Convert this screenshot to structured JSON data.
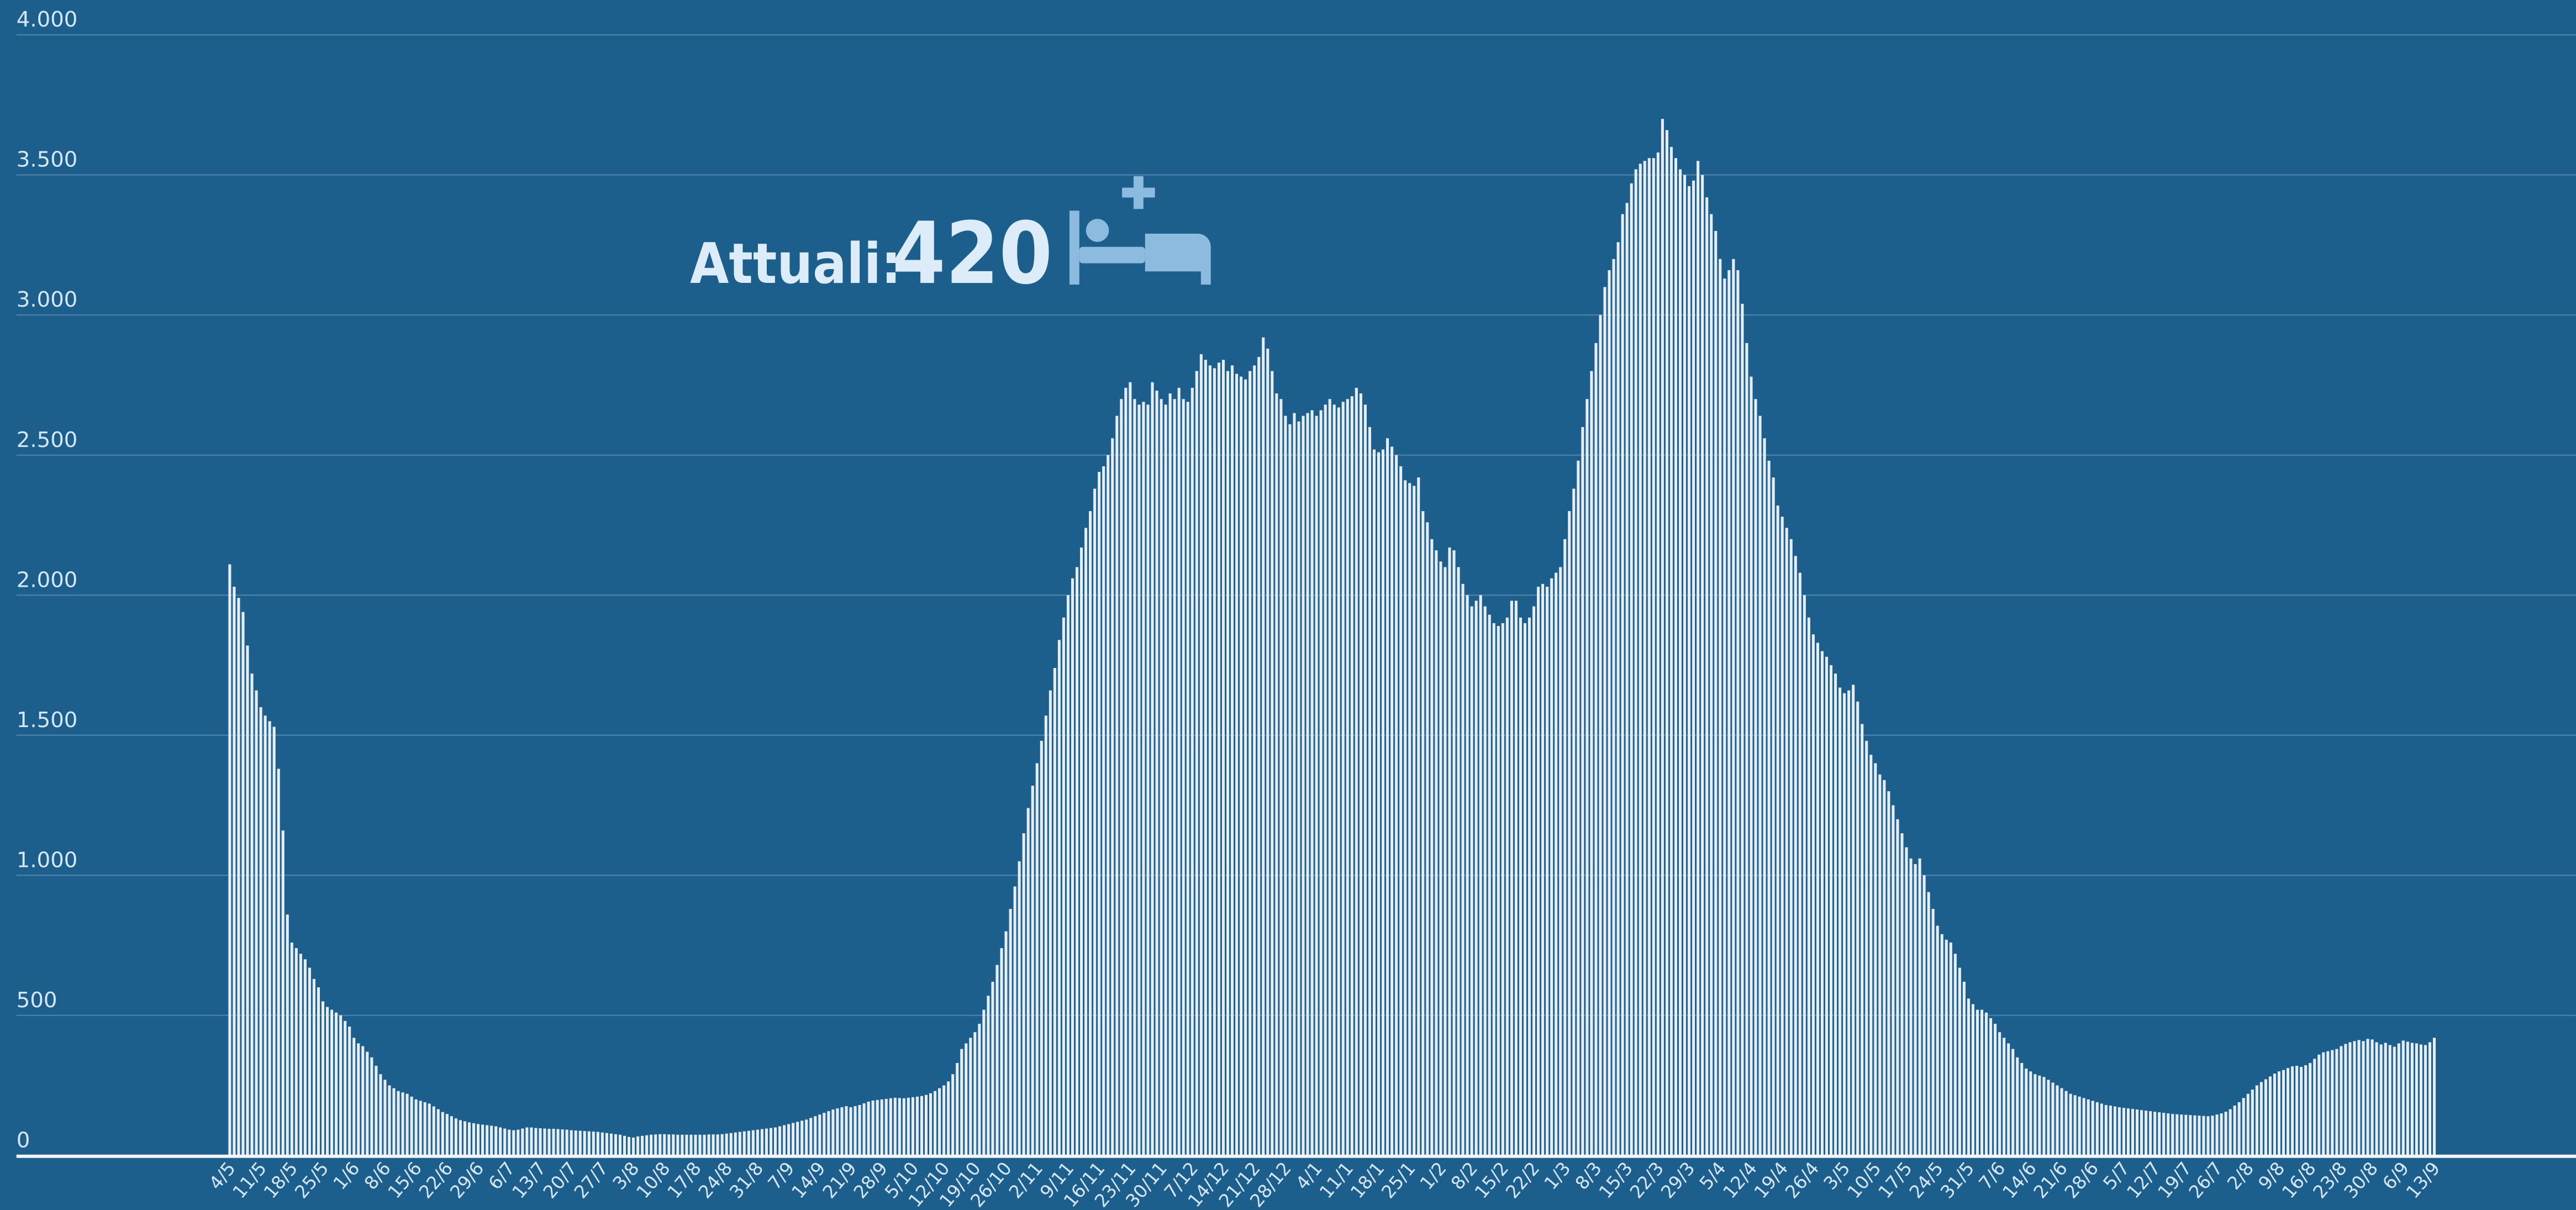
{
  "chart_data": {
    "type": "bar",
    "annotation": {
      "label": "Attuali:",
      "value": "420"
    },
    "color": "#e6eef4",
    "grid": true,
    "ylim": [
      0,
      4000
    ],
    "yticks": [
      0,
      500,
      {
        "value": 1000,
        "label": "1.000"
      },
      {
        "value": 1500,
        "label": "1.500"
      },
      {
        "value": 2000,
        "label": "2.000"
      },
      {
        "value": 2500,
        "label": "2.500"
      },
      {
        "value": 3000,
        "label": "3.000"
      },
      {
        "value": 3500,
        "label": "3.500"
      },
      {
        "value": 4000,
        "label": "4.000"
      }
    ],
    "categories": [
      "4/5",
      null,
      null,
      null,
      null,
      null,
      null,
      "11/5",
      null,
      null,
      null,
      null,
      null,
      null,
      "18/5",
      null,
      null,
      null,
      null,
      null,
      null,
      "25/5",
      null,
      null,
      null,
      null,
      null,
      null,
      "1/6",
      null,
      null,
      null,
      null,
      null,
      null,
      "8/6",
      null,
      null,
      null,
      null,
      null,
      null,
      "15/6",
      null,
      null,
      null,
      null,
      null,
      null,
      "22/6",
      null,
      null,
      null,
      null,
      null,
      null,
      "29/6",
      null,
      null,
      null,
      null,
      null,
      null,
      "6/7",
      null,
      null,
      null,
      null,
      null,
      null,
      "13/7",
      null,
      null,
      null,
      null,
      null,
      null,
      "20/7",
      null,
      null,
      null,
      null,
      null,
      null,
      "27/7",
      null,
      null,
      null,
      null,
      null,
      null,
      "3/8",
      null,
      null,
      null,
      null,
      null,
      null,
      "10/8",
      null,
      null,
      null,
      null,
      null,
      null,
      "17/8",
      null,
      null,
      null,
      null,
      null,
      null,
      "24/8",
      null,
      null,
      null,
      null,
      null,
      null,
      "31/8",
      null,
      null,
      null,
      null,
      null,
      null,
      "7/9",
      null,
      null,
      null,
      null,
      null,
      null,
      "14/9",
      null,
      null,
      null,
      null,
      null,
      null,
      "21/9",
      null,
      null,
      null,
      null,
      null,
      null,
      "28/9",
      null,
      null,
      null,
      null,
      null,
      null,
      "5/10",
      null,
      null,
      null,
      null,
      null,
      null,
      "12/10",
      null,
      null,
      null,
      null,
      null,
      null,
      "19/10",
      null,
      null,
      null,
      null,
      null,
      null,
      "26/10",
      null,
      null,
      null,
      null,
      null,
      null,
      "2/11",
      null,
      null,
      null,
      null,
      null,
      null,
      "9/11",
      null,
      null,
      null,
      null,
      null,
      null,
      "16/11",
      null,
      null,
      null,
      null,
      null,
      null,
      "23/11",
      null,
      null,
      null,
      null,
      null,
      null,
      "30/11",
      null,
      null,
      null,
      null,
      null,
      null,
      "7/12",
      null,
      null,
      null,
      null,
      null,
      null,
      "14/12",
      null,
      null,
      null,
      null,
      null,
      null,
      "21/12",
      null,
      null,
      null,
      null,
      null,
      null,
      "28/12",
      null,
      null,
      null,
      null,
      null,
      null,
      "4/1",
      null,
      null,
      null,
      null,
      null,
      null,
      "11/1",
      null,
      null,
      null,
      null,
      null,
      null,
      "18/1",
      null,
      null,
      null,
      null,
      null,
      null,
      "25/1",
      null,
      null,
      null,
      null,
      null,
      null,
      "1/2",
      null,
      null,
      null,
      null,
      null,
      null,
      "8/2",
      null,
      null,
      null,
      null,
      null,
      null,
      "15/2",
      null,
      null,
      null,
      null,
      null,
      null,
      "22/2",
      null,
      null,
      null,
      null,
      null,
      null,
      "1/3",
      null,
      null,
      null,
      null,
      null,
      null,
      "8/3",
      null,
      null,
      null,
      null,
      null,
      null,
      "15/3",
      null,
      null,
      null,
      null,
      null,
      null,
      "22/3",
      null,
      null,
      null,
      null,
      null,
      null,
      "29/3",
      null,
      null,
      null,
      null,
      null,
      null,
      "5/4",
      null,
      null,
      null,
      null,
      null,
      null,
      "12/4",
      null,
      null,
      null,
      null,
      null,
      null,
      "19/4",
      null,
      null,
      null,
      null,
      null,
      null,
      "26/4",
      null,
      null,
      null,
      null,
      null,
      null,
      "3/5",
      null,
      null,
      null,
      null,
      null,
      null,
      "10/5",
      null,
      null,
      null,
      null,
      null,
      null,
      "17/5",
      null,
      null,
      null,
      null,
      null,
      null,
      "24/5",
      null,
      null,
      null,
      null,
      null,
      null,
      "31/5",
      null,
      null,
      null,
      null,
      null,
      null,
      "7/6",
      null,
      null,
      null,
      null,
      null,
      null,
      "14/6",
      null,
      null,
      null,
      null,
      null,
      null,
      "21/6",
      null,
      null,
      null,
      null,
      null,
      null,
      "28/6",
      null,
      null,
      null,
      null,
      null,
      null,
      "5/7",
      null,
      null,
      null,
      null,
      null,
      null,
      "12/7",
      null,
      null,
      null,
      null,
      null,
      null,
      "19/7",
      null,
      null,
      null,
      null,
      null,
      null,
      "26/7",
      null,
      null,
      null,
      null,
      null,
      null,
      "2/8",
      null,
      null,
      null,
      null,
      null,
      null,
      "9/8",
      null,
      null,
      null,
      null,
      null,
      null,
      "16/8",
      null,
      null,
      null,
      null,
      null,
      null,
      "23/8",
      null,
      null,
      null,
      null,
      null,
      null,
      "30/8",
      null,
      null,
      null,
      null,
      null,
      null,
      "6/9",
      null,
      null,
      null,
      null,
      null,
      null,
      "13/9"
    ],
    "values": [
      2110,
      2030,
      1990,
      1940,
      1820,
      1720,
      1660,
      1600,
      1570,
      1550,
      1530,
      1380,
      1160,
      860,
      760,
      740,
      720,
      700,
      670,
      630,
      600,
      550,
      530,
      520,
      510,
      500,
      480,
      460,
      420,
      400,
      390,
      370,
      350,
      320,
      290,
      270,
      250,
      240,
      230,
      225,
      220,
      210,
      200,
      195,
      190,
      185,
      175,
      165,
      155,
      148,
      140,
      132,
      126,
      122,
      118,
      115,
      112,
      110,
      108,
      106,
      104,
      100,
      96,
      92,
      90,
      92,
      96,
      100,
      100,
      98,
      97,
      96,
      95,
      95,
      94,
      93,
      92,
      90,
      89,
      88,
      87,
      86,
      85,
      84,
      82,
      80,
      78,
      76,
      74,
      70,
      66,
      64,
      68,
      70,
      72,
      74,
      75,
      76,
      76,
      75,
      75,
      74,
      74,
      74,
      74,
      74,
      74,
      74,
      75,
      75,
      75,
      76,
      78,
      80,
      82,
      84,
      86,
      88,
      90,
      92,
      94,
      96,
      98,
      100,
      104,
      108,
      112,
      116,
      120,
      124,
      128,
      134,
      140,
      146,
      152,
      158,
      164,
      168,
      172,
      176,
      172,
      176,
      180,
      186,
      192,
      196,
      198,
      200,
      202,
      204,
      206,
      205,
      204,
      206,
      208,
      210,
      212,
      216,
      222,
      230,
      240,
      250,
      264,
      290,
      330,
      380,
      400,
      420,
      440,
      470,
      520,
      570,
      620,
      680,
      740,
      800,
      880,
      960,
      1050,
      1150,
      1240,
      1320,
      1400,
      1480,
      1570,
      1660,
      1740,
      1840,
      1920,
      2000,
      2060,
      2100,
      2170,
      2240,
      2300,
      2380,
      2440,
      2460,
      2500,
      2560,
      2640,
      2700,
      2740,
      2760,
      2700,
      2680,
      2690,
      2680,
      2760,
      2730,
      2700,
      2680,
      2720,
      2700,
      2740,
      2700,
      2690,
      2740,
      2800,
      2860,
      2840,
      2820,
      2810,
      2830,
      2840,
      2800,
      2820,
      2790,
      2780,
      2770,
      2800,
      2820,
      2850,
      2920,
      2880,
      2800,
      2720,
      2700,
      2640,
      2610,
      2650,
      2620,
      2640,
      2650,
      2660,
      2640,
      2660,
      2680,
      2700,
      2680,
      2670,
      2690,
      2700,
      2710,
      2740,
      2720,
      2680,
      2600,
      2520,
      2510,
      2520,
      2560,
      2530,
      2500,
      2460,
      2410,
      2400,
      2390,
      2420,
      2300,
      2260,
      2200,
      2160,
      2120,
      2100,
      2170,
      2160,
      2100,
      2040,
      2000,
      1960,
      1980,
      2000,
      1960,
      1930,
      1900,
      1890,
      1900,
      1920,
      1980,
      1980,
      1920,
      1900,
      1920,
      1960,
      2030,
      2040,
      2030,
      2060,
      2080,
      2100,
      2200,
      2300,
      2380,
      2480,
      2600,
      2700,
      2800,
      2900,
      3000,
      3100,
      3160,
      3200,
      3260,
      3360,
      3400,
      3470,
      3520,
      3540,
      3550,
      3560,
      3560,
      3580,
      3700,
      3660,
      3600,
      3560,
      3520,
      3500,
      3460,
      3480,
      3550,
      3500,
      3420,
      3360,
      3300,
      3200,
      3130,
      3160,
      3200,
      3160,
      3040,
      2900,
      2780,
      2700,
      2640,
      2560,
      2480,
      2420,
      2320,
      2280,
      2240,
      2200,
      2140,
      2080,
      2000,
      1920,
      1860,
      1830,
      1800,
      1780,
      1750,
      1720,
      1670,
      1650,
      1660,
      1680,
      1620,
      1540,
      1480,
      1430,
      1400,
      1360,
      1340,
      1300,
      1250,
      1200,
      1150,
      1100,
      1060,
      1040,
      1060,
      1000,
      940,
      880,
      820,
      790,
      770,
      760,
      720,
      670,
      620,
      560,
      540,
      520,
      520,
      510,
      490,
      470,
      440,
      420,
      400,
      380,
      350,
      330,
      310,
      300,
      290,
      285,
      280,
      270,
      260,
      250,
      240,
      230,
      220,
      215,
      210,
      205,
      200,
      195,
      190,
      185,
      180,
      178,
      175,
      172,
      170,
      168,
      166,
      164,
      162,
      160,
      158,
      156,
      154,
      152,
      150,
      148,
      147,
      146,
      145,
      144,
      143,
      142,
      141,
      140,
      142,
      146,
      150,
      156,
      165,
      178,
      190,
      205,
      220,
      235,
      250,
      262,
      272,
      282,
      292,
      300,
      305,
      312,
      318,
      320,
      316,
      322,
      330,
      345,
      360,
      368,
      372,
      376,
      380,
      390,
      398,
      404,
      408,
      412,
      408,
      416,
      414,
      404,
      396,
      402,
      394,
      388,
      400,
      410,
      406,
      402,
      400,
      396,
      394,
      404,
      420
    ]
  }
}
